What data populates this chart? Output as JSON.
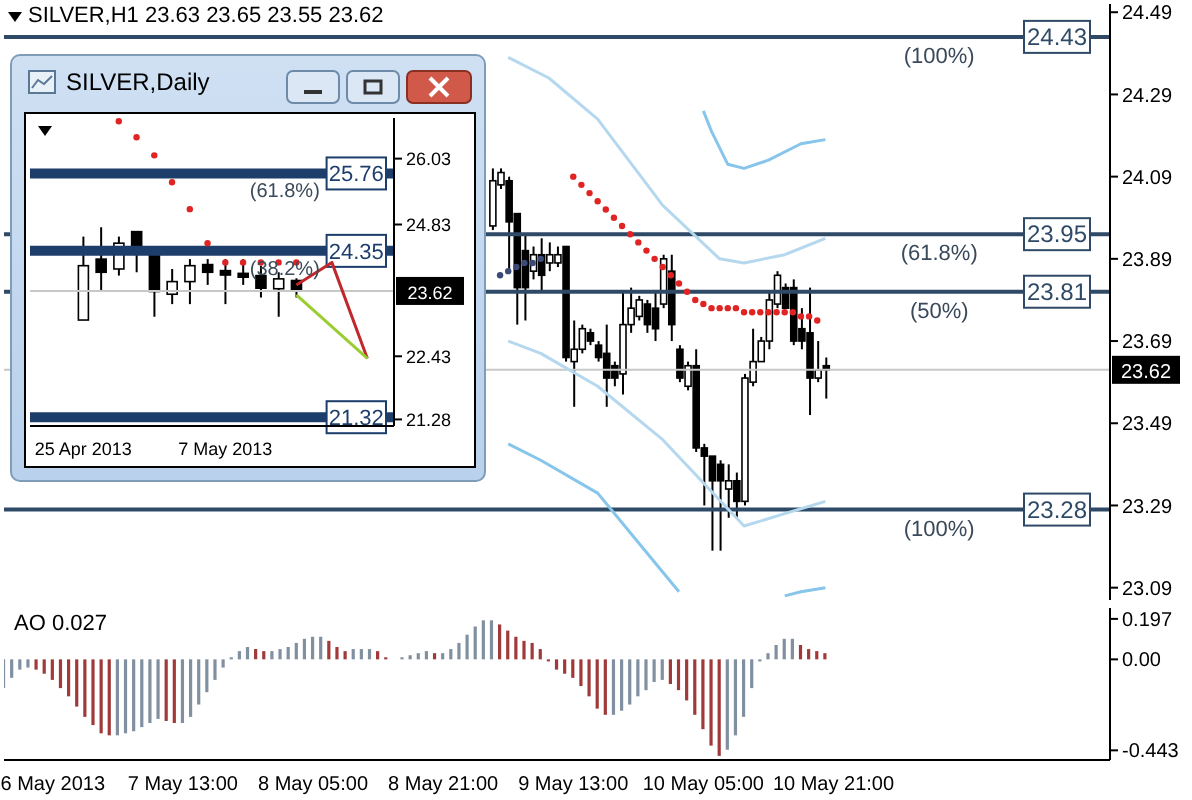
{
  "chart_data": [
    {
      "type": "candlestick",
      "title": "SILVER,H1 23.63 23.65 23.55 23.62",
      "x": [
        "2013-05-09T03:00",
        "2013-05-09T04:00",
        "2013-05-09T05:00",
        "2013-05-09T06:00",
        "2013-05-09T07:00",
        "2013-05-09T08:00",
        "2013-05-09T09:00",
        "2013-05-09T10:00",
        "2013-05-09T11:00",
        "2013-05-09T12:00",
        "2013-05-09T13:00",
        "2013-05-09T14:00",
        "2013-05-09T15:00",
        "2013-05-09T16:00",
        "2013-05-09T17:00",
        "2013-05-09T18:00",
        "2013-05-09T19:00",
        "2013-05-09T20:00",
        "2013-05-09T21:00",
        "2013-05-09T22:00",
        "2013-05-09T23:00",
        "2013-05-10T00:00",
        "2013-05-10T01:00",
        "2013-05-10T02:00",
        "2013-05-10T03:00",
        "2013-05-10T04:00",
        "2013-05-10T05:00",
        "2013-05-10T06:00",
        "2013-05-10T07:00",
        "2013-05-10T08:00",
        "2013-05-10T09:00",
        "2013-05-10T10:00",
        "2013-05-10T11:00",
        "2013-05-10T12:00",
        "2013-05-10T13:00",
        "2013-05-10T14:00",
        "2013-05-10T15:00",
        "2013-05-10T16:00",
        "2013-05-10T17:00",
        "2013-05-10T18:00",
        "2013-05-10T19:00",
        "2013-05-10T20:00"
      ],
      "ohlc": [
        [
          23.97,
          24.11,
          23.96,
          24.08
        ],
        [
          24.07,
          24.11,
          24.06,
          24.1
        ],
        [
          24.08,
          24.09,
          23.86,
          23.98
        ],
        [
          24.0,
          24.0,
          23.73,
          23.82
        ],
        [
          23.91,
          23.95,
          23.74,
          23.82
        ],
        [
          23.86,
          23.92,
          23.84,
          23.9
        ],
        [
          23.9,
          23.94,
          23.81,
          23.85
        ],
        [
          23.88,
          23.93,
          23.86,
          23.9
        ],
        [
          23.88,
          23.92,
          23.87,
          23.9
        ],
        [
          23.92,
          23.92,
          23.64,
          23.65
        ],
        [
          23.64,
          23.74,
          23.53,
          23.67
        ],
        [
          23.67,
          23.73,
          23.66,
          23.72
        ],
        [
          23.71,
          23.72,
          23.68,
          23.69
        ],
        [
          23.68,
          23.69,
          23.64,
          23.65
        ],
        [
          23.66,
          23.73,
          23.53,
          23.6
        ],
        [
          23.63,
          23.64,
          23.58,
          23.6
        ],
        [
          23.61,
          23.81,
          23.56,
          23.73
        ],
        [
          23.73,
          23.82,
          23.71,
          23.77
        ],
        [
          23.75,
          23.8,
          23.74,
          23.79
        ],
        [
          23.78,
          23.79,
          23.71,
          23.73
        ],
        [
          23.77,
          23.81,
          23.69,
          23.72
        ],
        [
          23.78,
          23.9,
          23.77,
          23.89
        ],
        [
          23.86,
          23.9,
          23.69,
          23.73
        ],
        [
          23.67,
          23.68,
          23.59,
          23.6
        ],
        [
          23.58,
          23.64,
          23.57,
          23.63
        ],
        [
          23.63,
          23.67,
          23.42,
          23.43
        ],
        [
          23.43,
          23.44,
          23.29,
          23.41
        ],
        [
          23.41,
          23.41,
          23.18,
          23.35
        ],
        [
          23.39,
          23.4,
          23.18,
          23.35
        ],
        [
          23.33,
          23.39,
          23.26,
          23.35
        ],
        [
          23.35,
          23.37,
          23.26,
          23.3
        ],
        [
          23.3,
          23.61,
          23.29,
          23.6
        ],
        [
          23.59,
          23.72,
          23.58,
          23.64
        ],
        [
          23.64,
          23.7,
          23.64,
          23.69
        ],
        [
          23.69,
          23.81,
          23.67,
          23.79
        ],
        [
          23.78,
          23.86,
          23.77,
          23.85
        ],
        [
          23.82,
          23.83,
          23.77,
          23.77
        ],
        [
          23.82,
          23.84,
          23.68,
          23.69
        ],
        [
          23.72,
          23.77,
          23.67,
          23.69
        ],
        [
          23.71,
          23.82,
          23.51,
          23.6
        ],
        [
          23.6,
          23.69,
          23.59,
          23.62
        ],
        [
          23.63,
          23.65,
          23.55,
          23.62
        ]
      ],
      "xlim": [
        "2013-05-06T15:00",
        "2013-05-12T07:00"
      ],
      "ylim": [
        23.06,
        24.51
      ],
      "yticks": [
        23.09,
        23.29,
        23.49,
        23.69,
        23.89,
        24.09,
        24.29,
        24.49
      ],
      "tick_labels": "y",
      "series": [
        {
          "type": "line",
          "color": "#87c5ea",
          "x": [
            "2013-05-10T05:00",
            "2013-05-10T06:00",
            "2013-05-10T08:00",
            "2013-05-10T10:00",
            "2013-05-10T13:00",
            "2013-05-10T17:00",
            "2013-05-10T20:00"
          ],
          "values": [
            24.25,
            24.2,
            24.12,
            24.11,
            24.13,
            24.17,
            24.18
          ]
        },
        {
          "type": "line",
          "color": "#b5d8ee",
          "x": [
            "2013-05-09T05:00",
            "2013-05-09T10:00",
            "2013-05-09T16:00",
            "2013-05-10T00:00",
            "2013-05-10T07:00",
            "2013-05-10T10:00",
            "2013-05-10T15:00",
            "2013-05-10T20:00"
          ],
          "values": [
            24.38,
            24.33,
            24.23,
            24.02,
            23.89,
            23.88,
            23.9,
            23.94
          ]
        },
        {
          "type": "line",
          "color": "#b5d8ee",
          "x": [
            "2013-05-09T05:00",
            "2013-05-09T09:00",
            "2013-05-09T16:00",
            "2013-05-10T00:00",
            "2013-05-10T10:00",
            "2013-05-10T15:00",
            "2013-05-10T20:00"
          ],
          "values": [
            23.69,
            23.66,
            23.58,
            23.45,
            23.24,
            23.27,
            23.3
          ]
        },
        {
          "type": "line",
          "color": "#87c5ea",
          "x": [
            "2013-05-09T05:00",
            "2013-05-09T09:00",
            "2013-05-09T16:00",
            "2013-05-09T21:00",
            "2013-05-10T02:00",
            "2013-05-10T09:00",
            "2013-05-10T15:00",
            "2013-05-10T17:00",
            "2013-05-10T20:00"
          ],
          "values": [
            23.44,
            23.4,
            23.32,
            23.2,
            23.08,
            null,
            23.07,
            23.08,
            23.09
          ]
        },
        {
          "type": "scatter",
          "color": "#e02424",
          "x": [
            "2013-05-09T13:00",
            "2013-05-09T14:00",
            "2013-05-09T15:00",
            "2013-05-09T16:00",
            "2013-05-09T17:00",
            "2013-05-09T18:00",
            "2013-05-09T19:00",
            "2013-05-09T20:00",
            "2013-05-09T21:00",
            "2013-05-09T22:00",
            "2013-05-09T23:00",
            "2013-05-10T00:00",
            "2013-05-10T01:00",
            "2013-05-10T02:00",
            "2013-05-10T03:00",
            "2013-05-10T04:00",
            "2013-05-10T05:00",
            "2013-05-10T06:00",
            "2013-05-10T07:00",
            "2013-05-10T08:00",
            "2013-05-10T09:00",
            "2013-05-10T10:00",
            "2013-05-10T11:00",
            "2013-05-10T12:00",
            "2013-05-10T13:00",
            "2013-05-10T14:00",
            "2013-05-10T15:00",
            "2013-05-10T16:00",
            "2013-05-10T17:00",
            "2013-05-10T18:00",
            "2013-05-10T19:00"
          ],
          "values": [
            24.09,
            24.07,
            24.05,
            24.03,
            24.01,
            23.99,
            23.97,
            23.95,
            23.93,
            23.91,
            23.89,
            23.87,
            23.85,
            23.83,
            23.81,
            23.79,
            23.78,
            23.77,
            23.77,
            23.77,
            23.77,
            23.76,
            23.76,
            23.76,
            23.76,
            23.76,
            23.76,
            23.76,
            23.75,
            23.75,
            23.74
          ]
        },
        {
          "type": "scatter",
          "color": "#3c4a78",
          "x": [
            "2013-05-09T04:00",
            "2013-05-09T05:00",
            "2013-05-09T06:00",
            "2013-05-09T07:00",
            "2013-05-09T08:00",
            "2013-05-09T09:00"
          ],
          "values": [
            23.85,
            23.86,
            23.87,
            23.88,
            23.88,
            23.89
          ]
        }
      ],
      "ref_lines": [
        {
          "axis": "y",
          "value": 24.43,
          "label": "24.43",
          "color": "#2f4a66"
        },
        {
          "axis": "y",
          "value": 23.95,
          "label": "23.95",
          "color": "#2f4a66"
        },
        {
          "axis": "y",
          "value": 23.81,
          "label": "23.81",
          "color": "#2f4a66"
        },
        {
          "axis": "y",
          "value": 23.28,
          "label": "23.28",
          "color": "#2f4a66"
        },
        {
          "axis": "y",
          "value": 23.62,
          "label": "23.62",
          "color": "#c8c8c8"
        }
      ],
      "annotations": [
        {
          "text": "(100%)",
          "x": "2013-05-11T10:00",
          "y": 24.43
        },
        {
          "text": "(61.8%)",
          "x": "2013-05-11T10:00",
          "y": 23.95
        },
        {
          "text": "(50%)",
          "x": "2013-05-11T10:00",
          "y": 23.81
        },
        {
          "text": "(100%)",
          "x": "2013-05-11T10:00",
          "y": 23.28
        }
      ]
    },
    {
      "type": "bar",
      "title": "AO 0.027",
      "x": [
        "2013-05-06T15:00",
        "2013-05-06T16:00",
        "2013-05-06T17:00",
        "2013-05-06T18:00",
        "2013-05-06T19:00",
        "2013-05-06T20:00",
        "2013-05-06T21:00",
        "2013-05-06T22:00",
        "2013-05-06T23:00",
        "2013-05-07T00:00",
        "2013-05-07T01:00",
        "2013-05-07T02:00",
        "2013-05-07T03:00",
        "2013-05-07T04:00",
        "2013-05-07T05:00",
        "2013-05-07T06:00",
        "2013-05-07T07:00",
        "2013-05-07T08:00",
        "2013-05-07T09:00",
        "2013-05-07T10:00",
        "2013-05-07T11:00",
        "2013-05-07T12:00",
        "2013-05-07T13:00",
        "2013-05-07T14:00",
        "2013-05-07T15:00",
        "2013-05-07T16:00",
        "2013-05-07T17:00",
        "2013-05-07T18:00",
        "2013-05-07T19:00",
        "2013-05-07T20:00",
        "2013-05-07T21:00",
        "2013-05-07T22:00",
        "2013-05-07T23:00",
        "2013-05-08T00:00",
        "2013-05-08T01:00",
        "2013-05-08T02:00",
        "2013-05-08T03:00",
        "2013-05-08T04:00",
        "2013-05-08T05:00",
        "2013-05-08T06:00",
        "2013-05-08T07:00",
        "2013-05-08T08:00",
        "2013-05-08T09:00",
        "2013-05-08T10:00",
        "2013-05-08T11:00",
        "2013-05-08T12:00",
        "2013-05-08T13:00",
        "2013-05-08T14:00",
        "2013-05-08T15:00",
        "2013-05-08T16:00",
        "2013-05-08T17:00",
        "2013-05-08T18:00",
        "2013-05-08T19:00",
        "2013-05-08T20:00",
        "2013-05-08T21:00",
        "2013-05-08T22:00",
        "2013-05-08T23:00",
        "2013-05-09T00:00",
        "2013-05-09T01:00",
        "2013-05-09T02:00",
        "2013-05-09T03:00",
        "2013-05-09T04:00",
        "2013-05-09T05:00",
        "2013-05-09T06:00",
        "2013-05-09T07:00",
        "2013-05-09T08:00",
        "2013-05-09T09:00",
        "2013-05-09T10:00",
        "2013-05-09T11:00",
        "2013-05-09T12:00",
        "2013-05-09T13:00",
        "2013-05-09T14:00",
        "2013-05-09T15:00",
        "2013-05-09T16:00",
        "2013-05-09T17:00",
        "2013-05-09T18:00",
        "2013-05-09T19:00",
        "2013-05-09T20:00",
        "2013-05-09T21:00",
        "2013-05-09T22:00",
        "2013-05-09T23:00",
        "2013-05-10T00:00",
        "2013-05-10T01:00",
        "2013-05-10T02:00",
        "2013-05-10T03:00",
        "2013-05-10T04:00",
        "2013-05-10T05:00",
        "2013-05-10T06:00",
        "2013-05-10T07:00",
        "2013-05-10T08:00",
        "2013-05-10T09:00",
        "2013-05-10T10:00",
        "2013-05-10T11:00",
        "2013-05-10T12:00",
        "2013-05-10T13:00",
        "2013-05-10T14:00",
        "2013-05-10T15:00",
        "2013-05-10T16:00",
        "2013-05-10T17:00",
        "2013-05-10T18:00",
        "2013-05-10T19:00",
        "2013-05-10T20:00"
      ],
      "values": [
        -0.14,
        -0.09,
        -0.05,
        -0.04,
        -0.05,
        -0.07,
        -0.1,
        -0.14,
        -0.18,
        -0.23,
        -0.28,
        -0.32,
        -0.36,
        -0.37,
        -0.37,
        -0.36,
        -0.35,
        -0.33,
        -0.31,
        -0.29,
        -0.3,
        -0.31,
        -0.31,
        -0.28,
        -0.22,
        -0.16,
        -0.1,
        -0.04,
        0.01,
        0.04,
        0.06,
        0.05,
        0.04,
        0.04,
        0.05,
        0.06,
        0.08,
        0.1,
        0.11,
        0.11,
        0.09,
        0.06,
        0.04,
        0.05,
        0.05,
        0.05,
        0.04,
        0.01,
        0.0,
        0.01,
        0.02,
        0.03,
        0.04,
        0.03,
        0.03,
        0.05,
        0.08,
        0.12,
        0.16,
        0.19,
        0.19,
        0.17,
        0.14,
        0.11,
        0.09,
        0.08,
        0.05,
        -0.01,
        -0.05,
        -0.07,
        -0.09,
        -0.13,
        -0.18,
        -0.24,
        -0.27,
        -0.27,
        -0.25,
        -0.22,
        -0.18,
        -0.15,
        -0.11,
        -0.1,
        -0.12,
        -0.15,
        -0.2,
        -0.27,
        -0.34,
        -0.42,
        -0.47,
        -0.44,
        -0.37,
        -0.28,
        -0.14,
        -0.01,
        0.03,
        0.07,
        0.1,
        0.1,
        0.07,
        0.05,
        0.04,
        0.03
      ],
      "colors": [
        "#8090a0",
        "#8090a0",
        "#8090a0",
        "#8090a0",
        "#a03a3a",
        "#a03a3a",
        "#a03a3a",
        "#a03a3a",
        "#a03a3a",
        "#a03a3a",
        "#a03a3a",
        "#a03a3a",
        "#a03a3a",
        "#a03a3a",
        "#8090a0",
        "#8090a0",
        "#8090a0",
        "#8090a0",
        "#8090a0",
        "#8090a0",
        "#a03a3a",
        "#a03a3a",
        "#8090a0",
        "#8090a0",
        "#8090a0",
        "#8090a0",
        "#8090a0",
        "#8090a0",
        "#8090a0",
        "#8090a0",
        "#8090a0",
        "#a03a3a",
        "#a03a3a",
        "#8090a0",
        "#8090a0",
        "#8090a0",
        "#8090a0",
        "#8090a0",
        "#8090a0",
        "#8090a0",
        "#a03a3a",
        "#a03a3a",
        "#a03a3a",
        "#8090a0",
        "#8090a0",
        "#8090a0",
        "#a03a3a",
        "#a03a3a",
        "#a03a3a",
        "#8090a0",
        "#8090a0",
        "#8090a0",
        "#8090a0",
        "#a03a3a",
        "#8090a0",
        "#8090a0",
        "#8090a0",
        "#8090a0",
        "#8090a0",
        "#8090a0",
        "#8090a0",
        "#a03a3a",
        "#a03a3a",
        "#a03a3a",
        "#a03a3a",
        "#a03a3a",
        "#a03a3a",
        "#a03a3a",
        "#a03a3a",
        "#a03a3a",
        "#a03a3a",
        "#a03a3a",
        "#a03a3a",
        "#a03a3a",
        "#a03a3a",
        "#8090a0",
        "#8090a0",
        "#8090a0",
        "#8090a0",
        "#8090a0",
        "#8090a0",
        "#8090a0",
        "#a03a3a",
        "#a03a3a",
        "#a03a3a",
        "#a03a3a",
        "#a03a3a",
        "#a03a3a",
        "#a03a3a",
        "#8090a0",
        "#8090a0",
        "#8090a0",
        "#8090a0",
        "#8090a0",
        "#8090a0",
        "#8090a0",
        "#8090a0",
        "#8090a0",
        "#a03a3a",
        "#a03a3a",
        "#a03a3a",
        "#a03a3a"
      ],
      "xlim": [
        "2013-05-06T15:00",
        "2013-05-12T07:00"
      ],
      "xticks": [
        {
          "value": "2013-05-06T21:00",
          "label": "6 May 2013"
        },
        {
          "value": "2013-05-07T13:00",
          "label": "7 May 13:00"
        },
        {
          "value": "2013-05-08T05:00",
          "label": "8 May 05:00"
        },
        {
          "value": "2013-05-08T21:00",
          "label": "8 May 21:00"
        },
        {
          "value": "2013-05-09T13:00",
          "label": "9 May 13:00"
        },
        {
          "value": "2013-05-10T05:00",
          "label": "10 May 05:00"
        },
        {
          "value": "2013-05-10T21:00",
          "label": "10 May 21:00"
        }
      ],
      "ylim": [
        -0.49,
        0.25
      ],
      "yticks": [
        0.197,
        {
          "value": 0,
          "label": "0.00"
        },
        -0.443
      ]
    },
    {
      "type": "candlestick",
      "title": "SILVER,Daily",
      "categories": [
        "25 Apr 2013",
        null,
        null,
        null,
        null,
        null,
        null,
        null,
        "7 May 2013",
        null,
        null,
        null,
        null,
        null,
        null,
        null,
        null,
        null
      ],
      "ohlc": [
        [
          23.09,
          24.61,
          23.09,
          24.08
        ],
        [
          24.2,
          24.78,
          23.61,
          23.96
        ],
        [
          24.02,
          24.61,
          23.9,
          24.49
        ],
        [
          24.7,
          24.7,
          23.96,
          24.31
        ],
        [
          24.26,
          24.26,
          23.15,
          23.61
        ],
        [
          23.56,
          24.02,
          23.38,
          23.79
        ],
        [
          23.79,
          24.2,
          23.38,
          24.08
        ],
        [
          24.1,
          24.2,
          23.73,
          23.96
        ],
        [
          23.99,
          24.2,
          23.38,
          23.91
        ],
        [
          23.94,
          24.2,
          23.73,
          23.87
        ],
        [
          23.9,
          24.08,
          23.5,
          23.67
        ],
        [
          23.66,
          23.96,
          23.15,
          23.84
        ],
        [
          23.81,
          23.85,
          23.5,
          23.62
        ],
        null,
        null,
        null,
        null,
        null
      ],
      "ylim": [
        21.16,
        26.77
      ],
      "yticks": [
        21.28,
        22.43,
        24.83,
        26.03
      ],
      "series": [
        {
          "type": "scatter",
          "color": "#e02424",
          "values": [
            null,
            null,
            26.71,
            26.42,
            26.09,
            25.6,
            25.11,
            24.49,
            24.14,
            24.14,
            24.14,
            24.14,
            24.14,
            null,
            null,
            null,
            null,
            null
          ]
        },
        {
          "type": "line",
          "color": "#c0282d",
          "values": [
            null,
            null,
            null,
            null,
            null,
            null,
            null,
            null,
            null,
            null,
            null,
            null,
            23.73,
            null,
            24.14,
            null,
            22.39,
            null
          ]
        },
        {
          "type": "line",
          "color": "#9acd32",
          "values": [
            null,
            null,
            null,
            null,
            null,
            null,
            null,
            null,
            null,
            null,
            null,
            null,
            23.55,
            null,
            null,
            null,
            22.39,
            null
          ]
        }
      ],
      "ref_lines": [
        {
          "axis": "y",
          "value": 25.76,
          "label": "25.76",
          "color": "#1d3d6b"
        },
        {
          "axis": "y",
          "value": 24.35,
          "label": "24.35",
          "color": "#1d3d6b"
        },
        {
          "axis": "y",
          "value": 21.32,
          "label": "21.32",
          "color": "#1d3d6b"
        },
        {
          "axis": "y",
          "value": 23.62,
          "label": "23.62",
          "color": "#c8c8c8"
        }
      ],
      "annotations": [
        {
          "text": "(61.8%)",
          "y": 25.76
        },
        {
          "text": "(38.2%)",
          "y": 24.35
        }
      ]
    }
  ]
}
